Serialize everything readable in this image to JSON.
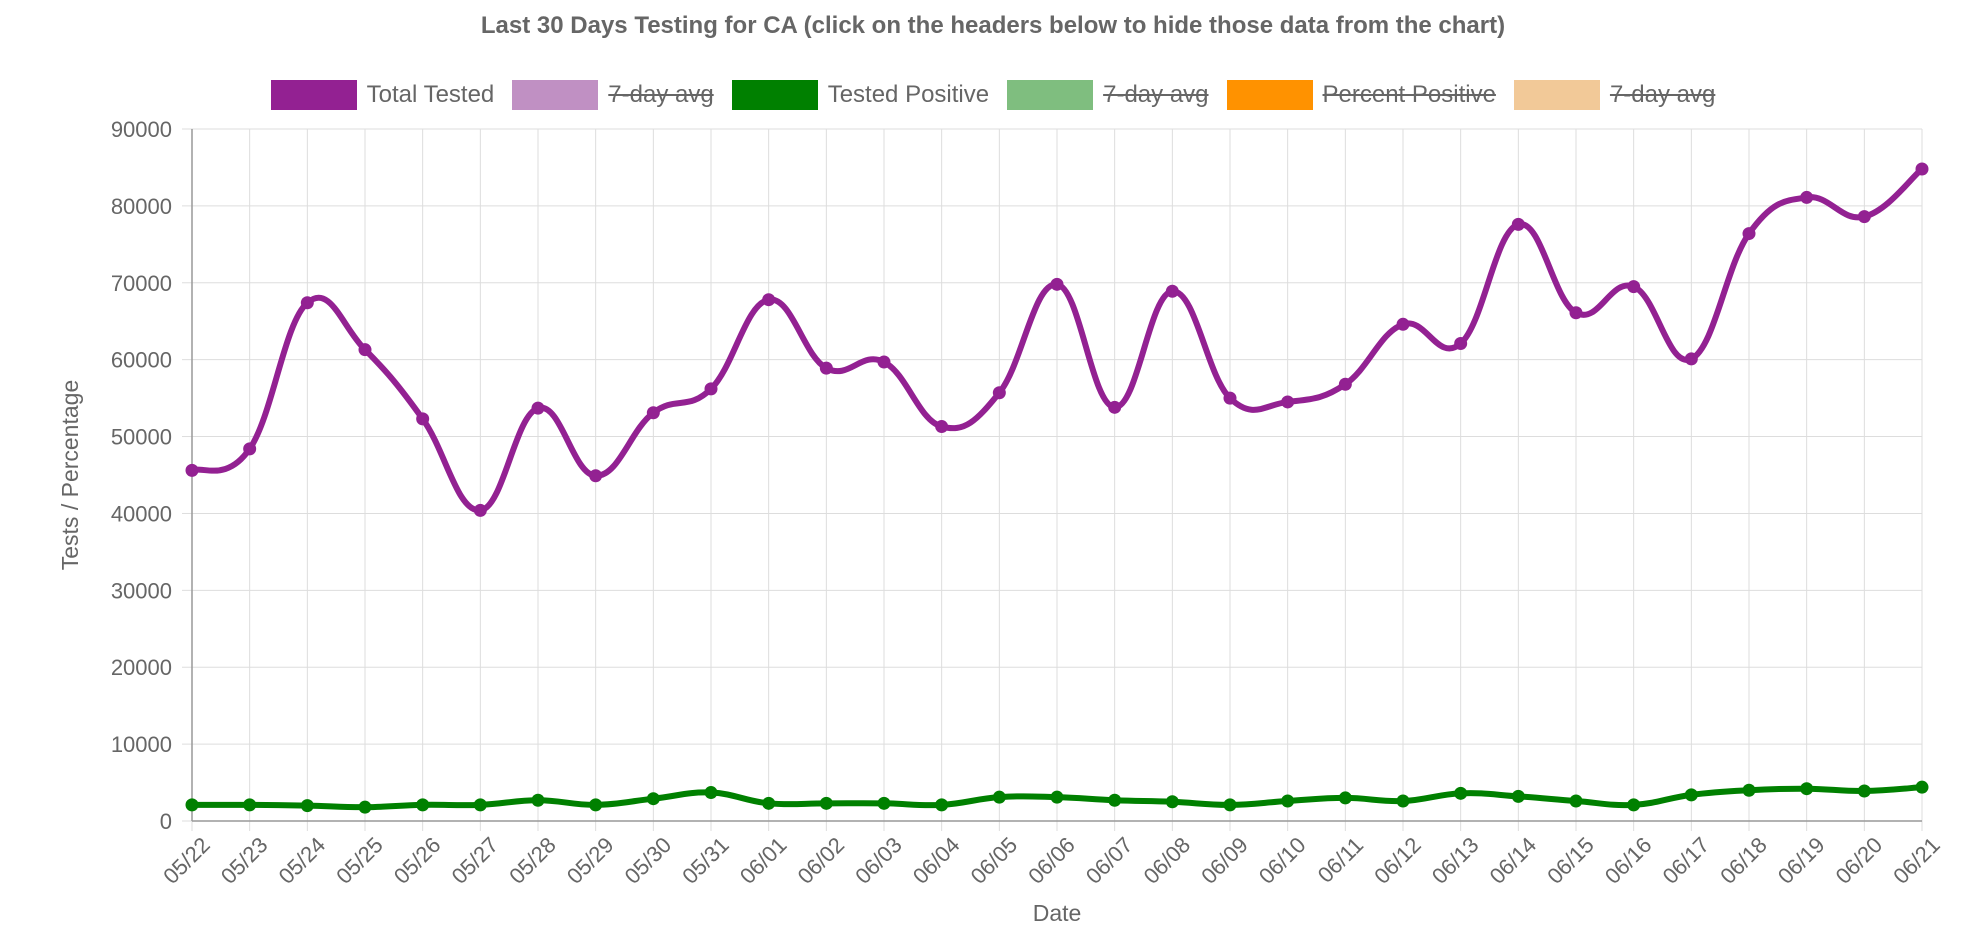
{
  "chart_data": {
    "type": "line",
    "title": "Last 30 Days Testing for CA (click on the headers below to hide those data from the chart)",
    "xlabel": "Date",
    "ylabel": "Tests / Percentage",
    "ylim": [
      0,
      90000
    ],
    "y_ticks": [
      "0",
      "10000",
      "20000",
      "30000",
      "40000",
      "50000",
      "60000",
      "70000",
      "80000",
      "90000"
    ],
    "grid": true,
    "legend_position": "top",
    "categories": [
      "05/22",
      "05/23",
      "05/24",
      "05/25",
      "05/26",
      "05/27",
      "05/28",
      "05/29",
      "05/30",
      "05/31",
      "06/01",
      "06/02",
      "06/03",
      "06/04",
      "06/05",
      "06/06",
      "06/07",
      "06/08",
      "06/09",
      "06/10",
      "06/11",
      "06/12",
      "06/13",
      "06/14",
      "06/15",
      "06/16",
      "06/17",
      "06/18",
      "06/19",
      "06/20",
      "06/21"
    ],
    "legend": [
      {
        "name": "Total Tested",
        "color": "#932192",
        "hidden": false
      },
      {
        "name": "7-day avg",
        "color": "#c090c3",
        "hidden": true
      },
      {
        "name": "Tested Positive",
        "color": "#008000",
        "hidden": false
      },
      {
        "name": "7-day avg",
        "color": "#7fbe7f",
        "hidden": true
      },
      {
        "name": "Percent Positive",
        "color": "#ff9200",
        "hidden": true
      },
      {
        "name": "7-day avg",
        "color": "#f2c998",
        "hidden": true
      }
    ],
    "series": [
      {
        "name": "Total Tested",
        "color": "#932192",
        "values": [
          45600,
          48400,
          67400,
          61300,
          52300,
          40400,
          53700,
          44900,
          53100,
          56200,
          67800,
          58900,
          59700,
          51300,
          55700,
          69800,
          53800,
          68900,
          55000,
          54500,
          56800,
          64600,
          62100,
          77600,
          66100,
          69500,
          60100,
          76400,
          81100,
          78600,
          84800
        ]
      },
      {
        "name": "Tested Positive",
        "color": "#008000",
        "values": [
          2100,
          2100,
          2000,
          1800,
          2100,
          2100,
          2700,
          2100,
          2900,
          3700,
          2300,
          2300,
          2300,
          2100,
          3100,
          3100,
          2700,
          2500,
          2100,
          2600,
          3000,
          2600,
          3600,
          3200,
          2600,
          2100,
          3400,
          4000,
          4200,
          3900,
          4400
        ]
      }
    ]
  }
}
